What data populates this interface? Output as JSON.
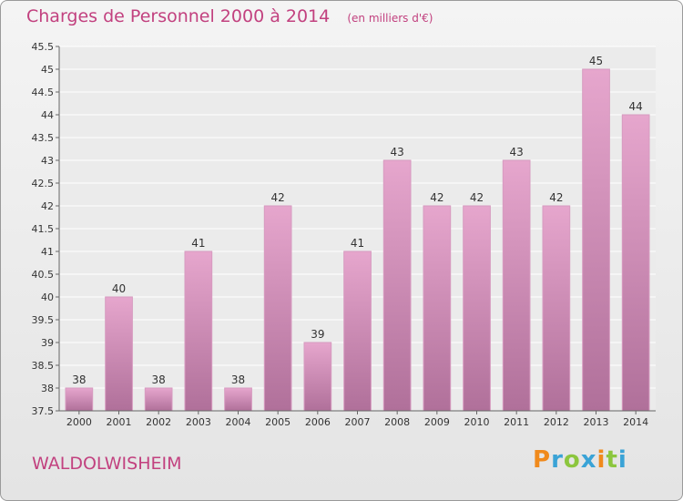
{
  "header": {
    "title": "Charges de Personnel 2000 à 2014",
    "unit": "(en milliers d'€)"
  },
  "footer": {
    "commune": "WALDOLWISHEIM",
    "logo_letters": [
      "P",
      "r",
      "o",
      "x",
      "i",
      "t",
      "i"
    ]
  },
  "colors": {
    "title": "#c2417f",
    "bar_top": "#e6a6cd",
    "bar_bottom": "#b0709a"
  },
  "chart_data": {
    "type": "bar",
    "categories": [
      "2000",
      "2001",
      "2002",
      "2003",
      "2004",
      "2005",
      "2006",
      "2007",
      "2008",
      "2009",
      "2010",
      "2011",
      "2012",
      "2013",
      "2014"
    ],
    "values": [
      38,
      40,
      38,
      41,
      38,
      42,
      39,
      41,
      43,
      42,
      42,
      43,
      42,
      45,
      44
    ],
    "ylim": [
      37.5,
      45.5
    ],
    "yticks": [
      "37.5",
      "38",
      "38.5",
      "39",
      "39.5",
      "40",
      "40.5",
      "41",
      "41.5",
      "42",
      "42.5",
      "43",
      "43.5",
      "44",
      "44.5",
      "45",
      "45.5"
    ],
    "grid": true
  }
}
